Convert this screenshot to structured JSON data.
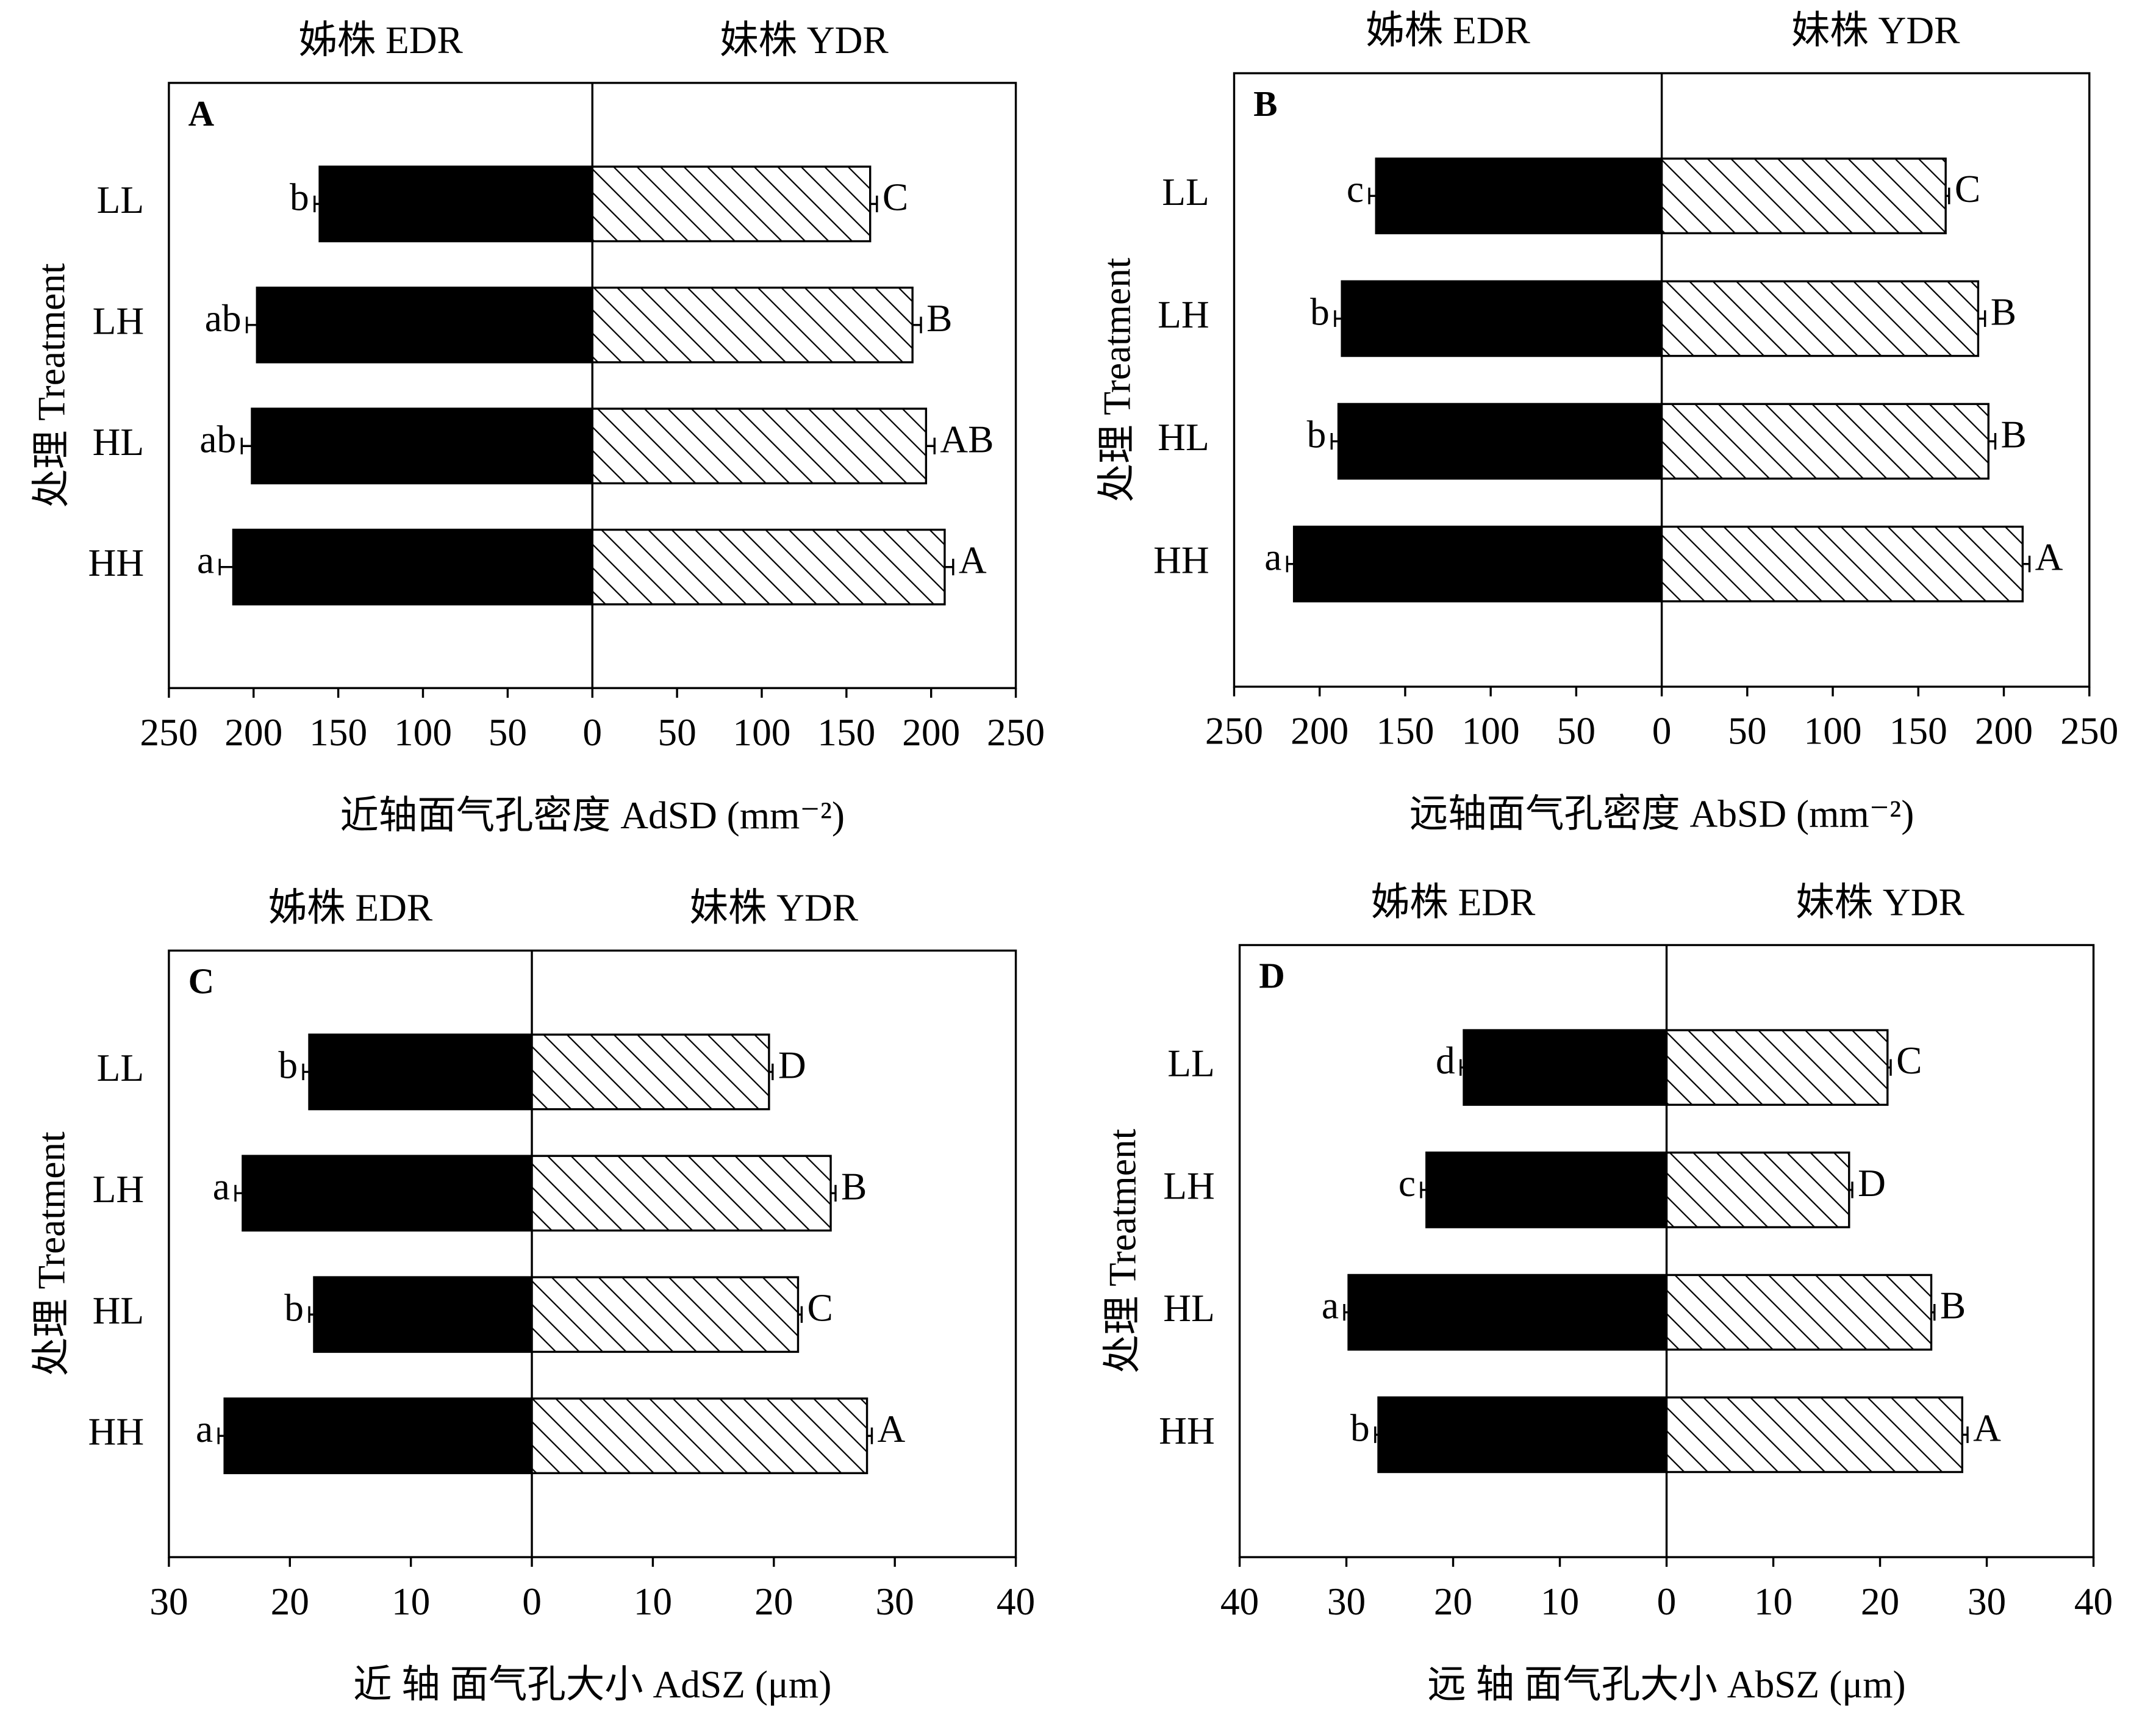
{
  "chart_data": [
    {
      "type": "bar",
      "label": "A",
      "xlabel": "近轴面气孔密度 AdSD (mm⁻²)",
      "ylabel": "处理 Treatment",
      "categories": [
        "LL",
        "LH",
        "HL",
        "HH"
      ],
      "series": [
        {
          "name": "姊株 EDR",
          "side": "left",
          "color": "#000000",
          "values": [
            161,
            198,
            201,
            212
          ],
          "errors": [
            3,
            6,
            6,
            8
          ],
          "letters": [
            "b",
            "ab",
            "ab",
            "a"
          ],
          "xlim": [
            250,
            0
          ],
          "xticks": [
            250,
            200,
            150,
            100,
            50
          ]
        },
        {
          "name": "妹株 YDR",
          "side": "right",
          "color": "#000000",
          "hatch": true,
          "values": [
            164,
            189,
            197,
            208
          ],
          "errors": [
            4,
            5,
            5,
            5
          ],
          "letters": [
            "C",
            "B",
            "AB",
            "A"
          ],
          "xlim": [
            0,
            250
          ],
          "xticks": [
            0,
            50,
            100,
            150,
            200,
            250
          ]
        }
      ]
    },
    {
      "type": "bar",
      "label": "B",
      "xlabel": "远轴面气孔密度 AbSD (mm⁻²)",
      "ylabel": "处理 Treatment",
      "categories": [
        "LL",
        "LH",
        "HL",
        "HH"
      ],
      "series": [
        {
          "name": "姊株 EDR",
          "side": "left",
          "color": "#000000",
          "values": [
            167,
            187,
            189,
            215
          ],
          "errors": [
            4,
            4,
            4,
            4
          ],
          "letters": [
            "c",
            "b",
            "b",
            "a"
          ],
          "xlim": [
            250,
            0
          ],
          "xticks": [
            250,
            200,
            150,
            100,
            50
          ]
        },
        {
          "name": "妹株 YDR",
          "side": "right",
          "color": "#000000",
          "hatch": true,
          "values": [
            166,
            185,
            191,
            211
          ],
          "errors": [
            2,
            4,
            4,
            4
          ],
          "letters": [
            "C",
            "B",
            "B",
            "A"
          ],
          "xlim": [
            0,
            250
          ],
          "xticks": [
            0,
            50,
            100,
            150,
            200,
            250
          ]
        }
      ]
    },
    {
      "type": "bar",
      "label": "C",
      "xlabel": "近 轴 面气孔大小 AdSZ (μm)",
      "ylabel": "处理 Treatment",
      "categories": [
        "LL",
        "LH",
        "HL",
        "HH"
      ],
      "series": [
        {
          "name": "姊株 EDR",
          "side": "left",
          "color": "#000000",
          "values": [
            18.4,
            23.9,
            18.0,
            25.4
          ],
          "errors": [
            0.5,
            0.6,
            0.4,
            0.5
          ],
          "letters": [
            "b",
            "a",
            "b",
            "a"
          ],
          "xlim": [
            30,
            0
          ],
          "xticks": [
            30,
            20,
            10
          ]
        },
        {
          "name": "妹株 YDR",
          "side": "right",
          "color": "#000000",
          "hatch": true,
          "values": [
            19.6,
            24.7,
            22.0,
            27.7
          ],
          "errors": [
            0.3,
            0.4,
            0.3,
            0.4
          ],
          "letters": [
            "D",
            "B",
            "C",
            "A"
          ],
          "xlim": [
            0,
            40
          ],
          "xticks": [
            0,
            10,
            20,
            30,
            40
          ]
        }
      ]
    },
    {
      "type": "bar",
      "label": "D",
      "xlabel": "远 轴 面气孔大小 AbSZ (μm)",
      "ylabel": "处理 Treatment",
      "categories": [
        "LL",
        "LH",
        "HL",
        "HH"
      ],
      "series": [
        {
          "name": "姊株 EDR",
          "side": "left",
          "color": "#000000",
          "values": [
            19.0,
            22.5,
            29.8,
            27.0
          ],
          "errors": [
            0.3,
            0.5,
            0.4,
            0.3
          ],
          "letters": [
            "d",
            "c",
            "a",
            "b"
          ],
          "xlim": [
            40,
            0
          ],
          "xticks": [
            40,
            30,
            20,
            10
          ]
        },
        {
          "name": "妹株 YDR",
          "side": "right",
          "color": "#000000",
          "hatch": true,
          "values": [
            20.7,
            17.1,
            24.8,
            27.7
          ],
          "errors": [
            0.3,
            0.3,
            0.3,
            0.5
          ],
          "letters": [
            "C",
            "D",
            "B",
            "A"
          ],
          "xlim": [
            0,
            40
          ],
          "xticks": [
            0,
            10,
            20,
            30,
            40
          ]
        }
      ]
    }
  ]
}
